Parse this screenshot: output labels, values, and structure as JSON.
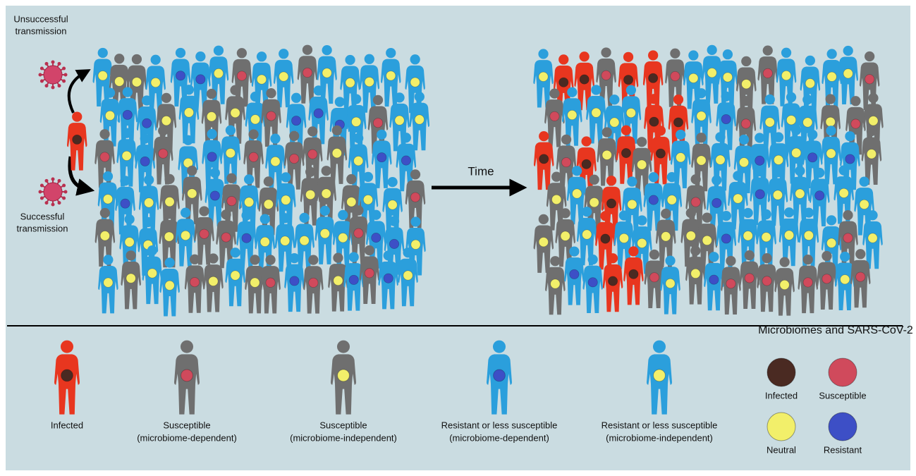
{
  "annotations": {
    "unsuccessful_transmission": [
      "Unsuccessful",
      "transmission"
    ],
    "successful_transmission": [
      "Successful",
      "transmission"
    ],
    "time": "Time"
  },
  "legend": [
    {
      "lines": [
        "Infected"
      ]
    },
    {
      "lines": [
        "Susceptible",
        "(microbiome-dependent)"
      ]
    },
    {
      "lines": [
        "Susceptible",
        "(microbiome-independent)"
      ]
    },
    {
      "lines": [
        "Resistant or less susceptible",
        "(microbiome-dependent)"
      ]
    },
    {
      "lines": [
        "Resistant or less susceptible",
        "(microbiome-independent)"
      ]
    }
  ],
  "microbiomes": {
    "title": "Microbiomes and SARS-CoV-2",
    "items": [
      "Infected",
      "Susceptible",
      "Neutral",
      "Resistant"
    ]
  }
}
